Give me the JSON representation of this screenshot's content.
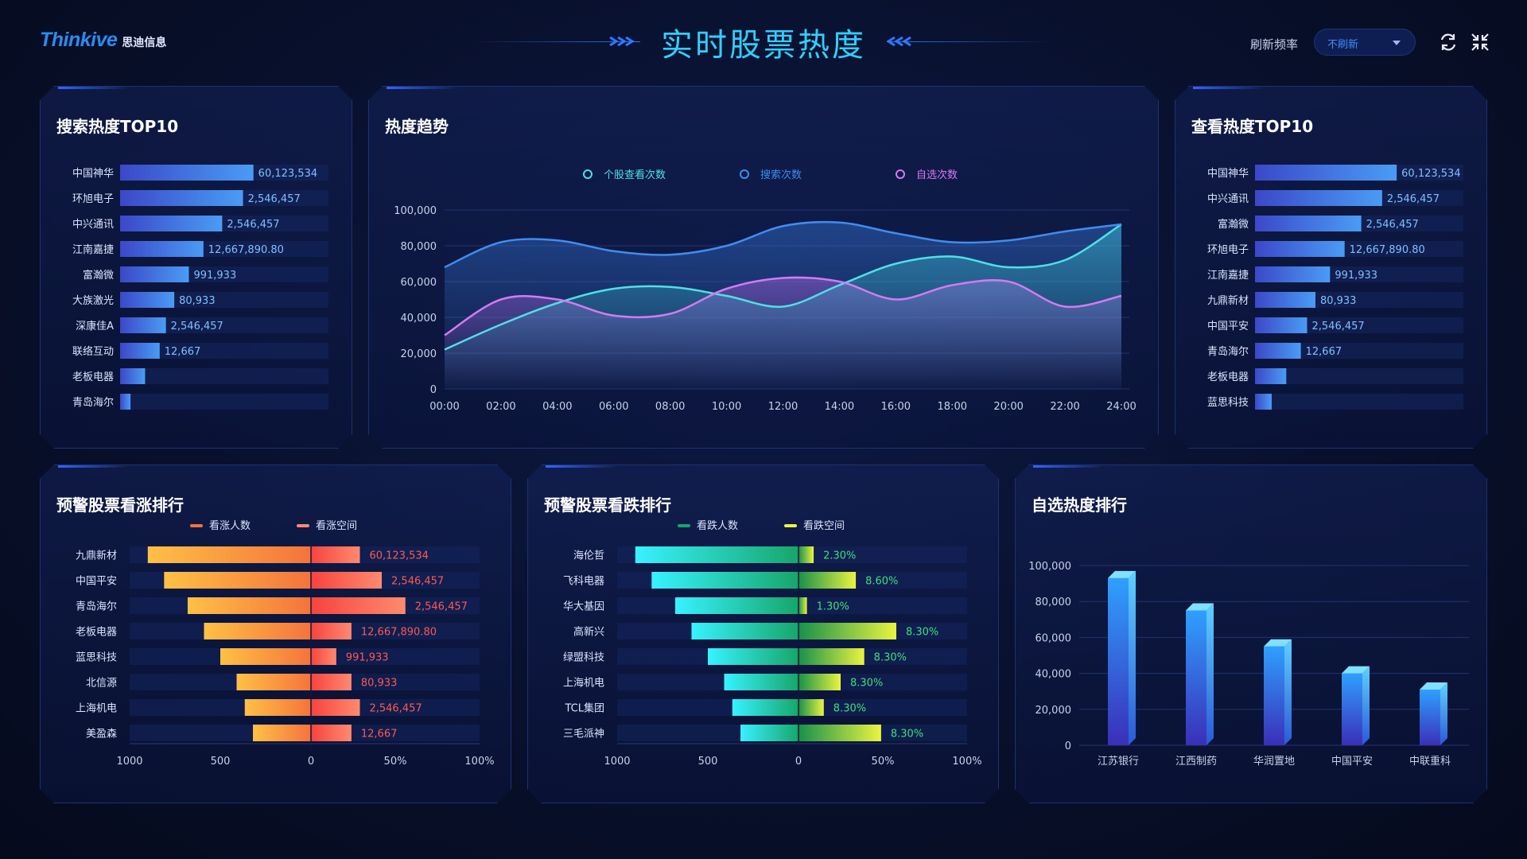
{
  "header": {
    "brand": "Thinkive",
    "brand_cn": "思迪信息",
    "title": "实时股票热度",
    "refresh_label": "刷新频率",
    "refresh_value": "不刷新"
  },
  "search_top10": {
    "title": "搜索热度TOP10",
    "items": [
      {
        "name": "中国神华",
        "value": 60123534,
        "label": "60,123,534",
        "pct": 0.64
      },
      {
        "name": "环旭电子",
        "value": 2546457,
        "label": "2,546,457",
        "pct": 0.59
      },
      {
        "name": "中兴通讯",
        "value": 2546457,
        "label": "2,546,457",
        "pct": 0.49
      },
      {
        "name": "江南嘉捷",
        "value": 12667890.8,
        "label": "12,667,890.80",
        "pct": 0.4
      },
      {
        "name": "富瀚微",
        "value": 991933,
        "label": "991,933",
        "pct": 0.33
      },
      {
        "name": "大族激光",
        "value": 80933,
        "label": "80,933",
        "pct": 0.26
      },
      {
        "name": "深康佳A",
        "value": 2546457,
        "label": "2,546,457",
        "pct": 0.22
      },
      {
        "name": "联络互动",
        "value": 12667,
        "label": "12,667",
        "pct": 0.19
      },
      {
        "name": "老板电器",
        "value": null,
        "label": "",
        "pct": 0.12
      },
      {
        "name": "青岛海尔",
        "value": null,
        "label": "",
        "pct": 0.05
      }
    ]
  },
  "view_top10": {
    "title": "查看热度TOP10",
    "items": [
      {
        "name": "中国神华",
        "value": 60123534,
        "label": "60,123,534",
        "pct": 0.68
      },
      {
        "name": "中兴通讯",
        "value": 2546457,
        "label": "2,546,457",
        "pct": 0.61
      },
      {
        "name": "富瀚微",
        "value": 2546457,
        "label": "2,546,457",
        "pct": 0.51
      },
      {
        "name": "环旭电子",
        "value": 12667890.8,
        "label": "12,667,890.80",
        "pct": 0.43
      },
      {
        "name": "江南嘉捷",
        "value": 991933,
        "label": "991,933",
        "pct": 0.36
      },
      {
        "name": "九鼎新材",
        "value": 80933,
        "label": "80,933",
        "pct": 0.29
      },
      {
        "name": "中国平安",
        "value": 2546457,
        "label": "2,546,457",
        "pct": 0.25
      },
      {
        "name": "青岛海尔",
        "value": 12667,
        "label": "12,667",
        "pct": 0.22
      },
      {
        "name": "老板电器",
        "value": null,
        "label": "",
        "pct": 0.15
      },
      {
        "name": "蓝思科技",
        "value": null,
        "label": "",
        "pct": 0.08
      }
    ]
  },
  "trend": {
    "title": "热度趋势",
    "chart_data": {
      "type": "area",
      "x": [
        "00:00",
        "02:00",
        "04:00",
        "06:00",
        "08:00",
        "10:00",
        "12:00",
        "14:00",
        "16:00",
        "18:00",
        "20:00",
        "22:00",
        "24:00"
      ],
      "ylim": [
        0,
        100000
      ],
      "yticks": [
        "100,000",
        "80,000",
        "60,000",
        "40,000",
        "20,000",
        "0"
      ],
      "series": [
        {
          "name": "个股查看次数",
          "color": "#4ee0e6",
          "values": [
            22000,
            36000,
            48000,
            56000,
            57000,
            52000,
            46000,
            58000,
            70000,
            74000,
            68000,
            72000,
            92000
          ]
        },
        {
          "name": "搜索次数",
          "color": "#3f8df0",
          "values": [
            68000,
            82000,
            83000,
            77000,
            75000,
            80000,
            91000,
            93000,
            87000,
            82000,
            83000,
            88000,
            92000
          ]
        },
        {
          "name": "自选次数",
          "color": "#d57af0",
          "values": [
            30000,
            50000,
            50000,
            41000,
            42000,
            56000,
            62000,
            60000,
            50000,
            58000,
            60000,
            46000,
            52000
          ]
        }
      ]
    }
  },
  "rise": {
    "title": "预警股票看涨排行",
    "legend": [
      "看涨人数",
      "看涨空间"
    ],
    "x_ticks": [
      "1000",
      "500",
      "0",
      "50%",
      "100%"
    ],
    "chart_data": {
      "type": "bar",
      "categories": [
        "九鼎新材",
        "中国平安",
        "青岛海尔",
        "老板电器",
        "蓝思科技",
        "北信源",
        "上海机电",
        "美盈森"
      ],
      "people": [
        900,
        810,
        680,
        590,
        500,
        410,
        365,
        320
      ],
      "space": [
        0.29,
        0.42,
        0.56,
        0.24,
        0.15,
        0.24,
        0.29,
        0.24
      ],
      "labels": [
        "60,123,534",
        "2,546,457",
        "2,546,457",
        "12,667,890.80",
        "991,933",
        "80,933",
        "2,546,457",
        "12,667"
      ]
    }
  },
  "fall": {
    "title": "预警股票看跌排行",
    "legend": [
      "看跌人数",
      "看跌空间"
    ],
    "x_ticks": [
      "1000",
      "500",
      "0",
      "50%",
      "100%"
    ],
    "chart_data": {
      "type": "bar",
      "categories": [
        "海伦哲",
        "飞科电器",
        "华大基因",
        "高新兴",
        "绿盟科技",
        "上海机电",
        "TCL集团",
        "三毛派神"
      ],
      "people": [
        900,
        810,
        680,
        590,
        500,
        410,
        365,
        320
      ],
      "space": [
        0.09,
        0.34,
        0.05,
        0.58,
        0.39,
        0.25,
        0.15,
        0.49
      ],
      "labels": [
        "2.30%",
        "8.60%",
        "1.30%",
        "8.30%",
        "8.30%",
        "8.30%",
        "8.30%",
        "8.30%"
      ]
    }
  },
  "fav": {
    "title": "自选热度排行",
    "chart_data": {
      "type": "bar",
      "categories": [
        "江苏银行",
        "江西制药",
        "华润置地",
        "中国平安",
        "中联重科"
      ],
      "values": [
        93000,
        75000,
        55000,
        40000,
        31000
      ],
      "ylim": [
        0,
        100000
      ],
      "yticks": [
        "100,000",
        "80,000",
        "60,000",
        "40,000",
        "20,000",
        "0"
      ]
    }
  }
}
